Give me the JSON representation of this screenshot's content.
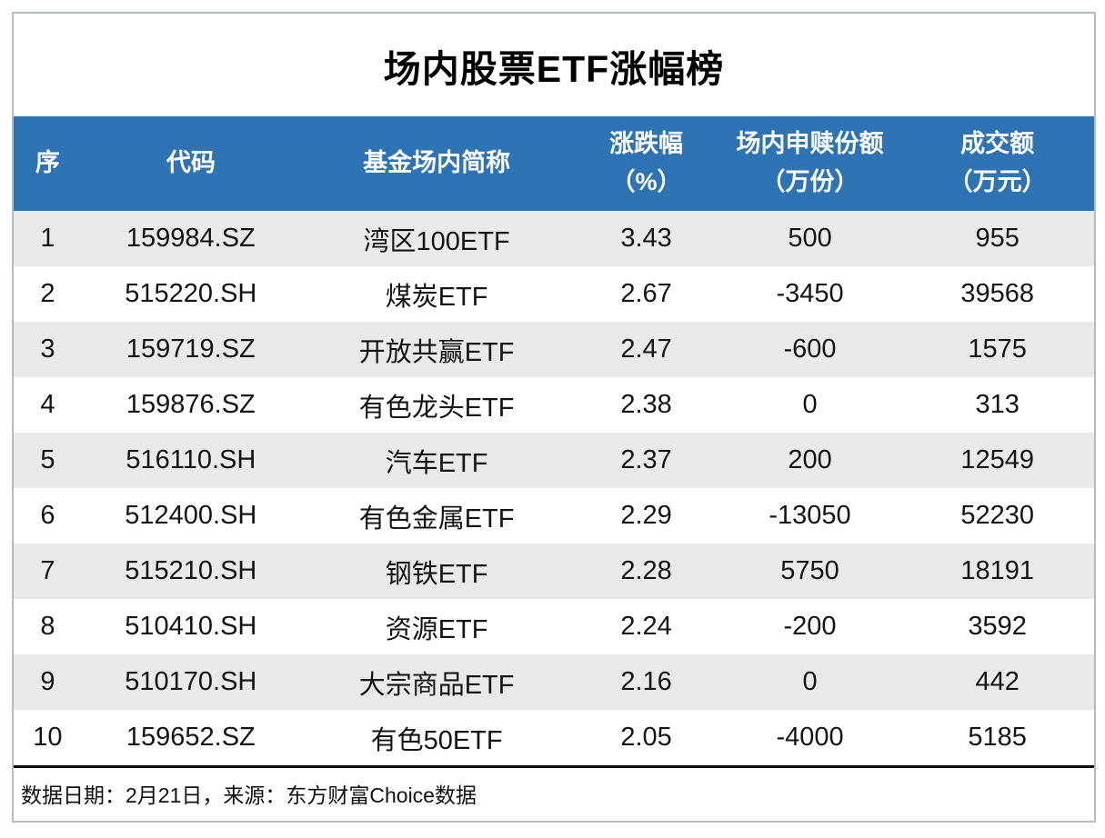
{
  "title": "场内股票ETF涨幅榜",
  "table": {
    "header_cells": [
      {
        "line1": "序",
        "line2": ""
      },
      {
        "line1": "代码",
        "line2": ""
      },
      {
        "line1": "基金场内简称",
        "line2": ""
      },
      {
        "line1": "涨跌幅",
        "line2": "（%）"
      },
      {
        "line1": "场内申赎份额",
        "line2": "（万份）"
      },
      {
        "line1": "成交额",
        "line2": "（万元）"
      }
    ],
    "rows": [
      [
        "1",
        "159984.SZ",
        "湾区100ETF",
        "3.43",
        "500",
        "955"
      ],
      [
        "2",
        "515220.SH",
        "煤炭ETF",
        "2.67",
        "-3450",
        "39568"
      ],
      [
        "3",
        "159719.SZ",
        "开放共赢ETF",
        "2.47",
        "-600",
        "1575"
      ],
      [
        "4",
        "159876.SZ",
        "有色龙头ETF",
        "2.38",
        "0",
        "313"
      ],
      [
        "5",
        "516110.SH",
        "汽车ETF",
        "2.37",
        "200",
        "12549"
      ],
      [
        "6",
        "512400.SH",
        "有色金属ETF",
        "2.29",
        "-13050",
        "52230"
      ],
      [
        "7",
        "515210.SH",
        "钢铁ETF",
        "2.28",
        "5750",
        "18191"
      ],
      [
        "8",
        "510410.SH",
        "资源ETF",
        "2.24",
        "-200",
        "3592"
      ],
      [
        "9",
        "510170.SH",
        "大宗商品ETF",
        "2.16",
        "0",
        "442"
      ],
      [
        "10",
        "159652.SZ",
        "有色50ETF",
        "2.05",
        "-4000",
        "5185"
      ]
    ]
  },
  "footer": {
    "note": "数据日期：2月21日，来源：东方财富Choice数据"
  },
  "colors": {
    "header_bg": "#2e74b5",
    "header_text": "#ffffff",
    "row_alt_bg": "#e9e9e9",
    "body_text": "#141414",
    "card_border": "#b6bac4",
    "footer_rule": "#0a0a0a"
  },
  "chart_data": {
    "type": "table",
    "title": "场内股票ETF涨幅榜",
    "columns": [
      "序",
      "代码",
      "基金场内简称",
      "涨跌幅（%）",
      "场内申赎份额（万份）",
      "成交额（万元）"
    ],
    "rows": [
      [
        1,
        "159984.SZ",
        "湾区100ETF",
        3.43,
        500,
        955
      ],
      [
        2,
        "515220.SH",
        "煤炭ETF",
        2.67,
        -3450,
        39568
      ],
      [
        3,
        "159719.SZ",
        "开放共赢ETF",
        2.47,
        -600,
        1575
      ],
      [
        4,
        "159876.SZ",
        "有色龙头ETF",
        2.38,
        0,
        313
      ],
      [
        5,
        "516110.SH",
        "汽车ETF",
        2.37,
        200,
        12549
      ],
      [
        6,
        "512400.SH",
        "有色金属ETF",
        2.29,
        -13050,
        52230
      ],
      [
        7,
        "515210.SH",
        "钢铁ETF",
        2.28,
        5750,
        18191
      ],
      [
        8,
        "510410.SH",
        "资源ETF",
        2.24,
        -200,
        3592
      ],
      [
        9,
        "510170.SH",
        "大宗商品ETF",
        2.16,
        0,
        442
      ],
      [
        10,
        "159652.SZ",
        "有色50ETF",
        2.05,
        -4000,
        5185
      ]
    ],
    "source_note": "数据日期：2月21日，来源：东方财富Choice数据",
    "layout": {
      "striped_rows": true,
      "header_style": "blue-band",
      "gridlines": "none"
    }
  }
}
